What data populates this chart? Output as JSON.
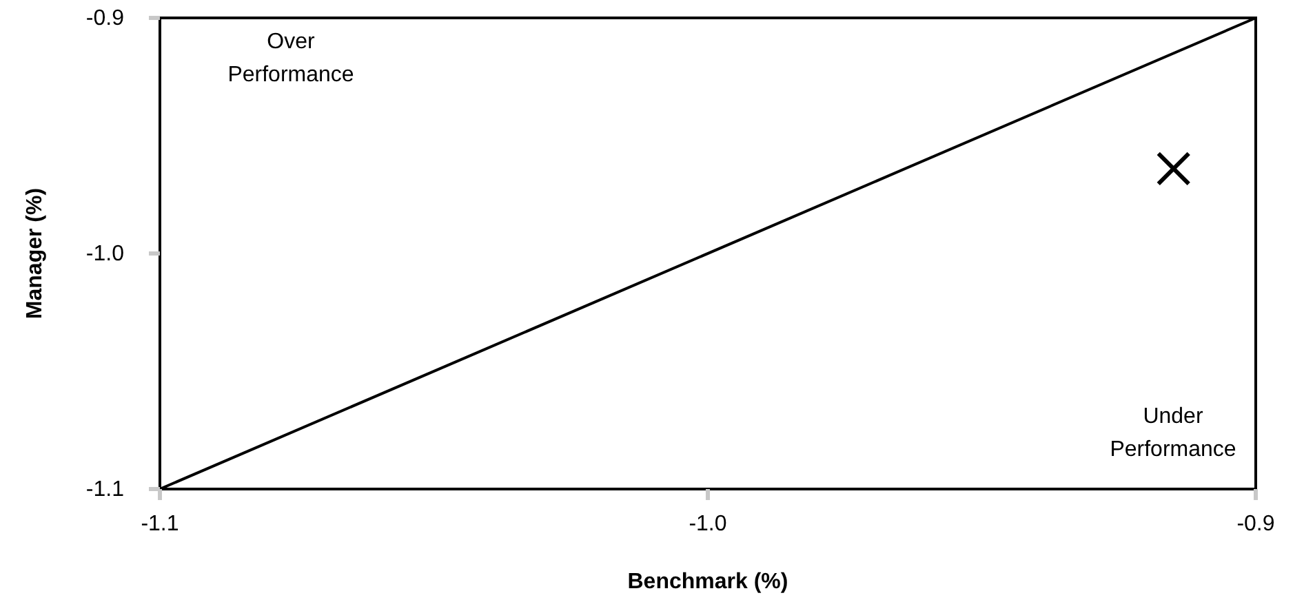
{
  "chart_data": {
    "type": "scatter",
    "xlabel": "Benchmark (%)",
    "ylabel": "Manager (%)",
    "xlim": [
      -1.1,
      -0.9
    ],
    "ylim": [
      -1.1,
      -0.9
    ],
    "xticks": [
      -1.1,
      {
        "value": -1,
        "label": "-1.0"
      },
      -0.9
    ],
    "yticks": [
      -1.1,
      {
        "value": -1,
        "label": "-1.0"
      },
      -0.9
    ],
    "grid": false,
    "series": [
      {
        "type": "line",
        "color": "#000000",
        "x": [
          -1.1,
          -0.9
        ],
        "values": [
          -1.1,
          -0.9
        ]
      },
      {
        "color": "#000000",
        "marker": "cross",
        "x": [
          -0.915
        ],
        "values": [
          -0.964
        ]
      }
    ],
    "annotations": [
      "Over Performance",
      "Under Performance"
    ]
  }
}
